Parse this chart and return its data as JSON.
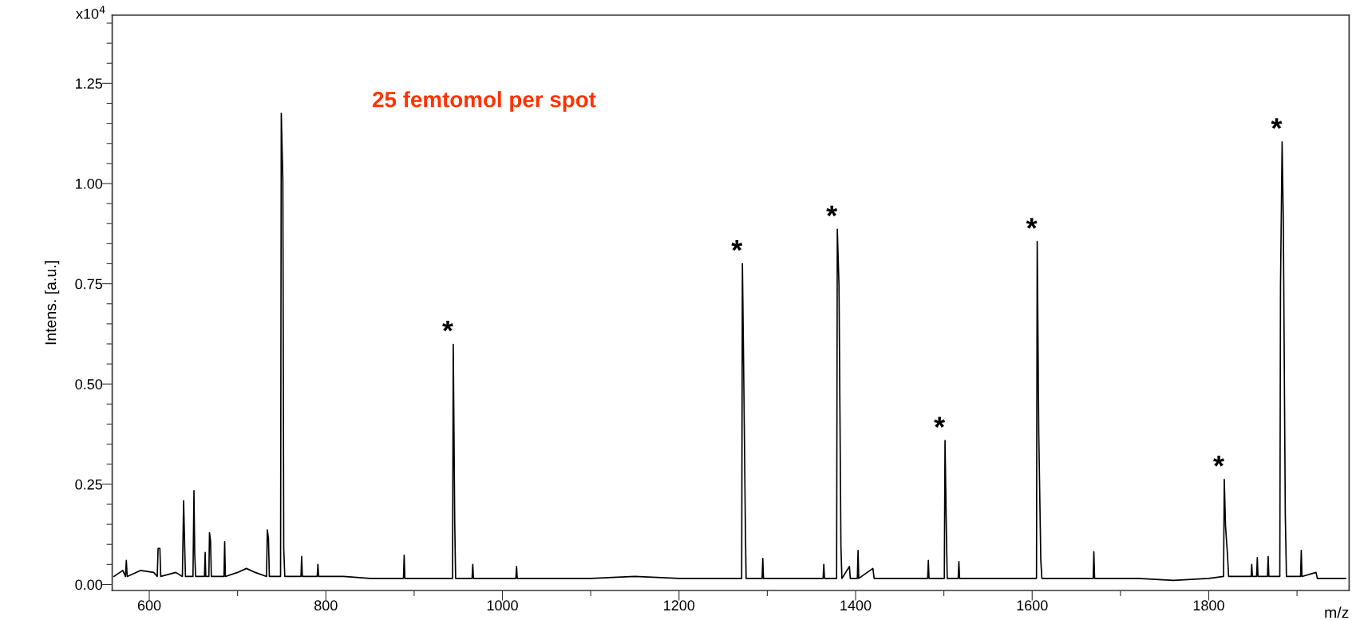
{
  "chart_data": {
    "type": "line",
    "title": "25 femtomol per spot",
    "xlabel": "m/z",
    "ylabel": "Intens. [a.u.]",
    "annotations": [
      "x10$^{4}$",
      {
        "text": "*",
        "x": 944.3,
        "y": 0.599
      },
      {
        "text": "*",
        "x": 1271.8,
        "y": 0.8
      },
      {
        "text": "*",
        "x": 1379.3,
        "y": 0.886
      },
      {
        "text": "*",
        "x": 1501.3,
        "y": 0.359
      },
      {
        "text": "*",
        "x": 1605.7,
        "y": 0.855
      },
      {
        "text": "*",
        "x": 1817.6,
        "y": 0.262
      },
      {
        "text": "*",
        "x": 1883.1,
        "y": 1.104
      }
    ],
    "xlim": [
      558,
      1959
    ],
    "ylim": [
      -0.015,
      1.42
    ],
    "xticks": [
      600,
      {
        "value": 700,
        "label": null
      },
      800,
      {
        "value": 900,
        "label": null
      },
      1000,
      {
        "value": 1100,
        "label": null
      },
      1200,
      {
        "value": 1300,
        "label": null
      },
      1400,
      {
        "value": 1500,
        "label": null
      },
      1600,
      {
        "value": 1700,
        "label": null
      },
      1800,
      {
        "value": 1900,
        "label": null
      }
    ],
    "yticks": [
      {
        "value": 0,
        "label": "0.00"
      },
      {
        "value": 0.05,
        "label": null
      },
      {
        "value": 0.1,
        "label": null
      },
      {
        "value": 0.15,
        "label": null
      },
      {
        "value": 0.2,
        "label": null
      },
      {
        "value": 0.25,
        "label": "0.25"
      },
      {
        "value": 0.3,
        "label": null
      },
      {
        "value": 0.35,
        "label": null
      },
      {
        "value": 0.4,
        "label": null
      },
      {
        "value": 0.45,
        "label": null
      },
      {
        "value": 0.5,
        "label": "0.50"
      },
      {
        "value": 0.55,
        "label": null
      },
      {
        "value": 0.6,
        "label": null
      },
      {
        "value": 0.65,
        "label": null
      },
      {
        "value": 0.7,
        "label": null
      },
      {
        "value": 0.75,
        "label": "0.75"
      },
      {
        "value": 0.8,
        "label": null
      },
      {
        "value": 0.85,
        "label": null
      },
      {
        "value": 0.9,
        "label": null
      },
      {
        "value": 0.95,
        "label": null
      },
      {
        "value": 1.0,
        "label": "1.00"
      },
      {
        "value": 1.05,
        "label": null
      },
      {
        "value": 1.1,
        "label": null
      },
      {
        "value": 1.15,
        "label": null
      },
      {
        "value": 1.2,
        "label": null
      },
      {
        "value": 1.25,
        "label": "1.25"
      },
      {
        "value": 1.3,
        "label": null
      },
      {
        "value": 1.35,
        "label": null
      },
      {
        "value": 1.4,
        "label": null
      }
    ],
    "grid": false,
    "legend": false,
    "marker": "none",
    "line_style": "solid",
    "series": [
      {
        "color": "#000000",
        "x": [
          560,
          570,
          573,
          574,
          575,
          590,
          605,
          609,
          610,
          612,
          613,
          630,
          637.5,
          638.9,
          640,
          641,
          649.5,
          650.6,
          651.5,
          652.5,
          662.5,
          663.3,
          664,
          667.5,
          668.2,
          669.4,
          670.3,
          684.6,
          685.4,
          686.2,
          700,
          710,
          720,
          732.8,
          733.7,
          735,
          736,
          748.7,
          749.5,
          751.3,
          752.3,
          753.5,
          771.8,
          772.6,
          773.4,
          790.2,
          791,
          791.8,
          820,
          850,
          887.9,
          888.7,
          889.5,
          920,
          943.5,
          944.3,
          946,
          947,
          965.6,
          966.4,
          967.2,
          1015.2,
          1016,
          1016.8,
          1060,
          1100,
          1150,
          1200,
          1250,
          1271,
          1271.8,
          1273.2,
          1275,
          1276,
          1294.1,
          1294.9,
          1295.7,
          1330,
          1363.2,
          1364,
          1364.8,
          1378.5,
          1379.3,
          1381.2,
          1383.4,
          1384.5,
          1393,
          1394,
          1402,
          1402.8,
          1403.6,
          1419.6,
          1421,
          1450,
          1481.6,
          1482.4,
          1483.2,
          1500.5,
          1501.3,
          1502.7,
          1503.8,
          1516.2,
          1517,
          1517.8,
          1560,
          1604.9,
          1605.7,
          1607.5,
          1609.8,
          1611,
          1640,
          1669.1,
          1669.9,
          1670.7,
          1720,
          1760,
          1800,
          1816.8,
          1817.6,
          1819,
          1821.2,
          1822.5,
          1848,
          1848.7,
          1849.5,
          1854.2,
          1855,
          1855.8,
          1866.5,
          1867.3,
          1868.1,
          1880.5,
          1881.3,
          1883.1,
          1884.5,
          1886.7,
          1888,
          1904,
          1904.8,
          1905.6,
          1921.5,
          1923,
          1955
        ],
        "values": [
          0.02,
          0.035,
          0.02,
          0.06,
          0.02,
          0.035,
          0.03,
          0.02,
          0.09,
          0.09,
          0.02,
          0.03,
          0.02,
          0.209,
          0.105,
          0.02,
          0.02,
          0.234,
          0.075,
          0.02,
          0.02,
          0.08,
          0.02,
          0.02,
          0.129,
          0.108,
          0.02,
          0.02,
          0.107,
          0.02,
          0.03,
          0.04,
          0.03,
          0.02,
          0.136,
          0.115,
          0.02,
          0.02,
          1.175,
          1.009,
          0.09,
          0.02,
          0.02,
          0.07,
          0.02,
          0.02,
          0.05,
          0.02,
          0.02,
          0.015,
          0.015,
          0.073,
          0.015,
          0.015,
          0.015,
          0.599,
          0.149,
          0.015,
          0.015,
          0.05,
          0.015,
          0.015,
          0.045,
          0.015,
          0.015,
          0.015,
          0.02,
          0.015,
          0.015,
          0.015,
          0.8,
          0.543,
          0.176,
          0.015,
          0.015,
          0.065,
          0.015,
          0.015,
          0.015,
          0.05,
          0.015,
          0.015,
          0.886,
          0.747,
          0.095,
          0.015,
          0.045,
          0.015,
          0.015,
          0.085,
          0.015,
          0.04,
          0.015,
          0.015,
          0.015,
          0.06,
          0.015,
          0.015,
          0.359,
          0.149,
          0.015,
          0.015,
          0.057,
          0.015,
          0.015,
          0.015,
          0.855,
          0.374,
          0.06,
          0.015,
          0.015,
          0.015,
          0.082,
          0.015,
          0.015,
          0.01,
          0.015,
          0.02,
          0.262,
          0.146,
          0.075,
          0.02,
          0.02,
          0.05,
          0.02,
          0.02,
          0.067,
          0.02,
          0.02,
          0.07,
          0.02,
          0.02,
          0.746,
          1.104,
          0.901,
          0.176,
          0.02,
          0.02,
          0.085,
          0.02,
          0.03,
          0.015,
          0.015
        ]
      }
    ]
  }
}
